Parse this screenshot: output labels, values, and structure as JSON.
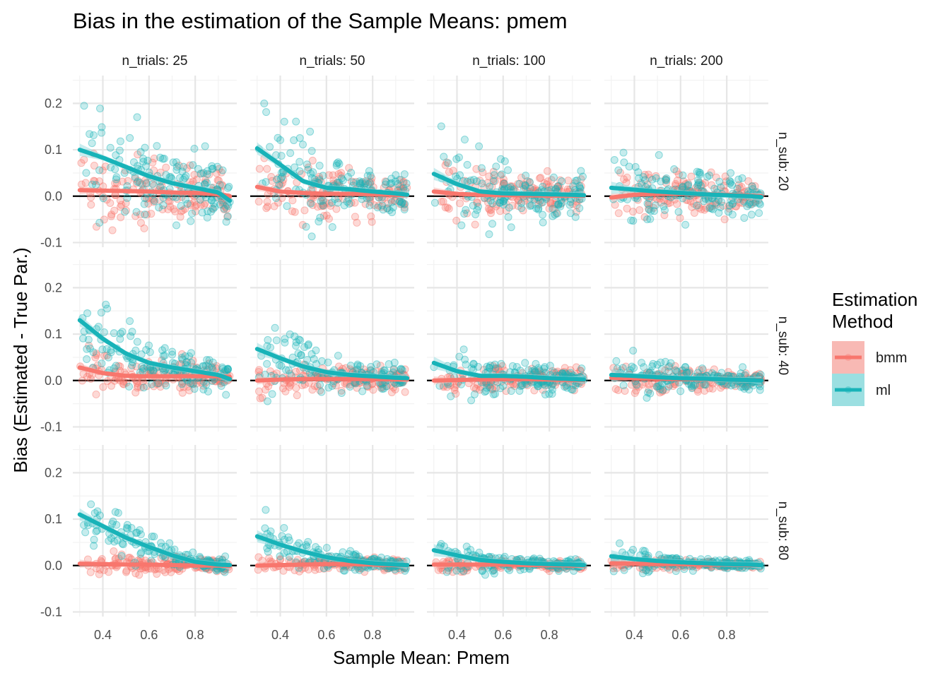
{
  "chart_data": {
    "type": "scatter",
    "title": "Bias in the estimation of the Sample Means: pmem",
    "xlabel": "Sample Mean: Pmem",
    "ylabel": "Bias (Estimated - True Par.)",
    "xlim": [
      0.27,
      0.98
    ],
    "ylim": [
      -0.11,
      0.26
    ],
    "x_ticks": [
      0.4,
      0.6,
      0.8
    ],
    "x_tick_labels": [
      "0.4",
      "0.6",
      "0.8"
    ],
    "y_ticks": [
      -0.1,
      0.0,
      0.1,
      0.2
    ],
    "y_tick_labels": [
      "-0.1",
      "0.0",
      "0.1",
      "0.2"
    ],
    "grid": true,
    "reference_line_y": 0,
    "col_facets": [
      "n_trials: 25",
      "n_trials: 50",
      "n_trials: 100",
      "n_trials: 200"
    ],
    "row_facets": [
      "n_sub: 20",
      "n_sub: 40",
      "n_sub: 80"
    ],
    "legend": {
      "title_lines": [
        "Estimation",
        "Method"
      ],
      "position": "right",
      "items": [
        {
          "label": "bmm",
          "color": "#F8766D",
          "band_color": "#F8B9B4"
        },
        {
          "label": "ml",
          "color": "#18B3B8",
          "band_color": "#9BDFE1"
        }
      ]
    },
    "trend_x": [
      0.3,
      0.4,
      0.5,
      0.6,
      0.7,
      0.8,
      0.9,
      0.95
    ],
    "point_spread": {
      "x_range": [
        0.3,
        0.95
      ],
      "bmm_noise": [
        0.06,
        0.045,
        0.04,
        0.035,
        0.03,
        0.025,
        0.022,
        0.02,
        0.015,
        0.012,
        0.01,
        0.008
      ],
      "ml_extra": [
        0.06,
        0.055,
        0.04,
        0.03,
        0.05,
        0.04,
        0.035,
        0.02,
        0.04,
        0.03,
        0.025,
        0.02
      ]
    },
    "series": [
      {
        "row": 0,
        "col": 0,
        "bmm_trend": [
          0.013,
          0.012,
          0.011,
          0.01,
          0.008,
          0.007,
          0.004,
          0.0
        ],
        "ml_trend": [
          0.1,
          0.083,
          0.063,
          0.043,
          0.028,
          0.018,
          0.008,
          -0.01
        ]
      },
      {
        "row": 0,
        "col": 1,
        "bmm_trend": [
          0.02,
          0.01,
          0.007,
          0.005,
          0.005,
          0.004,
          0.003,
          0.002
        ],
        "ml_trend": [
          0.103,
          0.068,
          0.032,
          0.018,
          0.015,
          0.01,
          0.006,
          0.003
        ]
      },
      {
        "row": 0,
        "col": 2,
        "bmm_trend": [
          0.01,
          0.005,
          0.003,
          0.002,
          0.002,
          0.001,
          0.001,
          0.001
        ],
        "ml_trend": [
          0.048,
          0.026,
          0.01,
          0.006,
          0.005,
          0.004,
          0.003,
          0.002
        ]
      },
      {
        "row": 0,
        "col": 3,
        "bmm_trend": [
          -0.003,
          0.003,
          0.005,
          0.005,
          0.004,
          0.003,
          0.001,
          0.0
        ],
        "ml_trend": [
          0.018,
          0.014,
          0.01,
          0.007,
          0.004,
          0.002,
          0.0,
          -0.002
        ]
      },
      {
        "row": 1,
        "col": 0,
        "bmm_trend": [
          0.028,
          0.016,
          0.01,
          0.009,
          0.009,
          0.009,
          0.009,
          0.008
        ],
        "ml_trend": [
          0.13,
          0.09,
          0.058,
          0.038,
          0.028,
          0.02,
          0.012,
          0.003
        ]
      },
      {
        "row": 1,
        "col": 1,
        "bmm_trend": [
          0.0,
          0.002,
          0.003,
          0.003,
          0.003,
          0.003,
          0.002,
          0.002
        ],
        "ml_trend": [
          0.068,
          0.048,
          0.03,
          0.018,
          0.012,
          0.009,
          0.006,
          0.005
        ]
      },
      {
        "row": 1,
        "col": 2,
        "bmm_trend": [
          0.0,
          0.001,
          0.002,
          0.003,
          0.003,
          0.002,
          0.001,
          0.001
        ],
        "ml_trend": [
          0.038,
          0.02,
          0.01,
          0.01,
          0.008,
          0.005,
          0.003,
          0.002
        ]
      },
      {
        "row": 1,
        "col": 3,
        "bmm_trend": [
          0.006,
          0.005,
          0.004,
          0.003,
          0.003,
          0.002,
          0.001,
          0.001
        ],
        "ml_trend": [
          0.012,
          0.01,
          0.007,
          0.005,
          0.004,
          0.002,
          0.001,
          0.0
        ]
      },
      {
        "row": 2,
        "col": 0,
        "bmm_trend": [
          0.004,
          0.003,
          0.002,
          0.002,
          0.001,
          0.0,
          0.0,
          -0.001
        ],
        "ml_trend": [
          0.11,
          0.085,
          0.06,
          0.04,
          0.022,
          0.008,
          0.002,
          0.001
        ]
      },
      {
        "row": 2,
        "col": 1,
        "bmm_trend": [
          0.0,
          0.001,
          0.002,
          0.003,
          0.003,
          0.002,
          0.001,
          0.001
        ],
        "ml_trend": [
          0.063,
          0.045,
          0.03,
          0.018,
          0.01,
          0.005,
          0.002,
          0.001
        ]
      },
      {
        "row": 2,
        "col": 2,
        "bmm_trend": [
          0.002,
          0.002,
          0.002,
          0.002,
          0.001,
          0.001,
          0.0,
          0.0
        ],
        "ml_trend": [
          0.033,
          0.022,
          0.012,
          0.008,
          0.005,
          0.003,
          0.002,
          0.001
        ]
      },
      {
        "row": 2,
        "col": 3,
        "bmm_trend": [
          0.005,
          0.004,
          0.003,
          0.003,
          0.002,
          0.002,
          0.001,
          0.001
        ],
        "ml_trend": [
          0.02,
          0.014,
          0.01,
          0.007,
          0.005,
          0.003,
          0.002,
          0.001
        ]
      }
    ]
  }
}
